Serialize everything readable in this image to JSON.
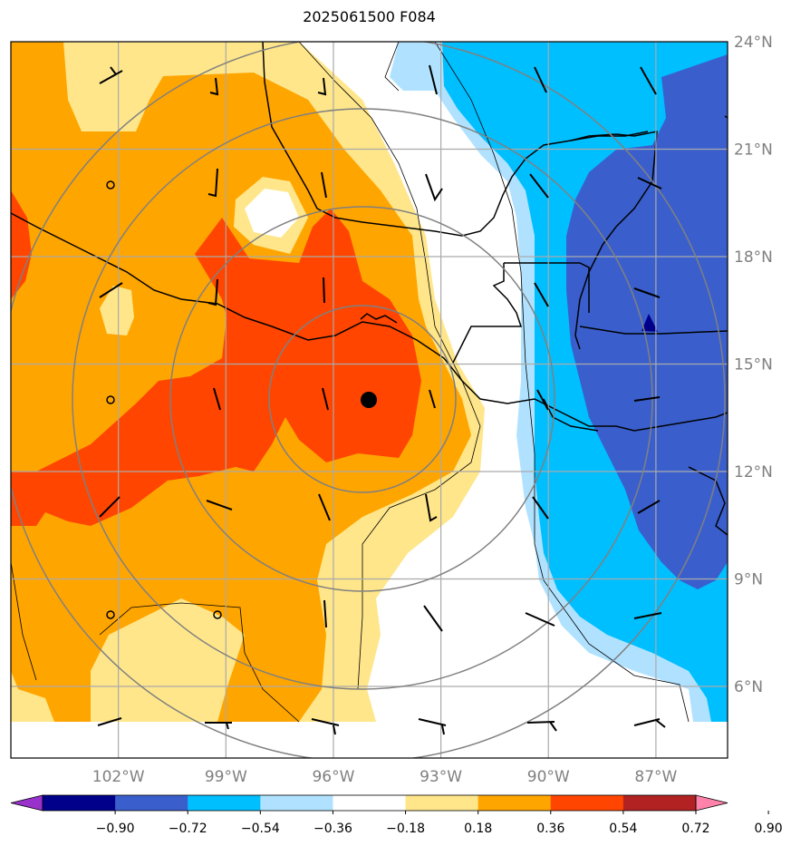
{
  "title": "2025061500 F084",
  "chart_data": {
    "type": "heatmap",
    "title": "2025061500 F084",
    "map": {
      "lon_range": [
        -105.0,
        -85.0
      ],
      "lat_range": [
        4.0,
        24.0
      ],
      "lon_ticks": [
        -102,
        -99,
        -96,
        -93,
        -90,
        -87
      ],
      "lon_tick_labels": [
        "102°W",
        "99°W",
        "96°W",
        "93°W",
        "90°W",
        "87°W"
      ],
      "lat_ticks": [
        6,
        9,
        12,
        15,
        18,
        21,
        24
      ],
      "lat_tick_labels": [
        "6°N",
        "9°N",
        "12°N",
        "15°N",
        "18°N",
        "21°N",
        "24°N"
      ],
      "grid": true,
      "center_marker": {
        "lon": -94.8,
        "lat": 14.0
      },
      "range_rings_deg": [
        3,
        6,
        9,
        12
      ]
    },
    "colorbar": {
      "orientation": "horizontal",
      "extend": "both",
      "tick_labels": [
        "−0.90",
        "−0.72",
        "−0.54",
        "−0.36",
        "−0.18",
        "0.18",
        "0.36",
        "0.54",
        "0.72",
        "0.90"
      ],
      "levels": [
        -0.9,
        -0.72,
        -0.54,
        -0.36,
        -0.18,
        0.18,
        0.36,
        0.54,
        0.72,
        0.9
      ],
      "colors": [
        "#9932cc",
        "#00008b",
        "#3a5fcd",
        "#00bfff",
        "#b0e2ff",
        "#ffffff",
        "#ffe68a",
        "#ffa500",
        "#ff4500",
        "#b22222",
        "#ff82ab"
      ]
    },
    "field_regions": [
      {
        "level": "0.18-0.36",
        "color": "#ffe68a"
      },
      {
        "level": "0.36-0.54",
        "color": "#ffa500"
      },
      {
        "level": "0.54-0.72",
        "color": "#ff4500"
      },
      {
        "level": "-0.36--0.18",
        "color": "#b0e2ff"
      },
      {
        "level": "-0.54--0.36",
        "color": "#00bfff"
      },
      {
        "level": "-0.72--0.54",
        "color": "#3a5fcd"
      },
      {
        "level": "-0.90--0.72",
        "color": "#00008b"
      }
    ]
  }
}
